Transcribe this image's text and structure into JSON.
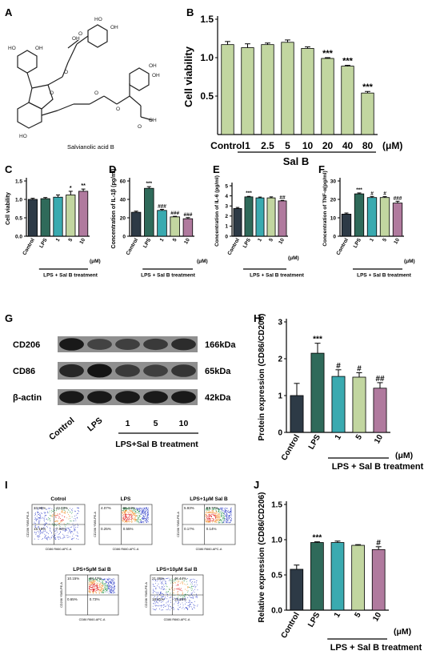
{
  "panel_letters": [
    "A",
    "B",
    "C",
    "D",
    "E",
    "F",
    "G",
    "H",
    "I",
    "J"
  ],
  "panelA": {
    "caption": "Salvianolic acid B"
  },
  "chart_data": [
    {
      "id": "B",
      "type": "bar",
      "ylabel": "Cell viability",
      "categories": [
        "Control",
        "1",
        "2.5",
        "5",
        "10",
        "20",
        "40",
        "80"
      ],
      "values": [
        1.17,
        1.13,
        1.17,
        1.2,
        1.12,
        0.99,
        0.89,
        0.54
      ],
      "errors": [
        0.04,
        0.05,
        0.02,
        0.03,
        0.02,
        0.01,
        0.01,
        0.02
      ],
      "sig": [
        "",
        "",
        "",
        "",
        "",
        "***",
        "***",
        "***"
      ],
      "colors": [
        "#c2d6a0",
        "#c2d6a0",
        "#c2d6a0",
        "#c2d6a0",
        "#c2d6a0",
        "#c2d6a0",
        "#c2d6a0",
        "#c2d6a0"
      ],
      "ylim": [
        0,
        1.5
      ],
      "yticks": [
        "0.5",
        "1.0",
        "1.5"
      ],
      "group_label": "Sal B",
      "unit": "(μM)"
    },
    {
      "id": "C",
      "type": "bar",
      "ylabel": "Cell viability",
      "categories": [
        "Control",
        "LPS",
        "1",
        "5",
        "10"
      ],
      "values": [
        1.0,
        1.02,
        1.06,
        1.12,
        1.22
      ],
      "errors": [
        0.03,
        0.03,
        0.06,
        0.1,
        0.06
      ],
      "sig": [
        "",
        "",
        "",
        "*",
        "**"
      ],
      "colors": [
        "#2d3a46",
        "#2f6a5a",
        "#3aaab0",
        "#c2d6a0",
        "#b07a9e"
      ],
      "ylim": [
        0,
        1.5
      ],
      "yticks": [
        "0.0",
        "0.5",
        "1.0",
        "1.5"
      ],
      "group_label": "LPS + Sal B treatment",
      "unit": "(μM)"
    },
    {
      "id": "D",
      "type": "bar",
      "ylabel": "Concentration of IL-1β (pg/ml)",
      "categories": [
        "Control",
        "LPS",
        "1",
        "5",
        "10"
      ],
      "values": [
        26,
        52,
        28,
        21,
        19
      ],
      "errors": [
        1.2,
        1.8,
        1.2,
        0.6,
        1.2
      ],
      "sig": [
        "",
        "***",
        "###",
        "###",
        "###"
      ],
      "colors": [
        "#2d3a46",
        "#2f6a5a",
        "#3aaab0",
        "#c2d6a0",
        "#b07a9e"
      ],
      "ylim": [
        0,
        60
      ],
      "yticks": [
        "0",
        "20",
        "40",
        "60"
      ],
      "group_label": "LPS + Sal B treatment",
      "unit": "(μM)"
    },
    {
      "id": "E",
      "type": "bar",
      "ylabel": "Concentration of IL-6 (pg/ml)",
      "categories": [
        "Control",
        "LPS",
        "1",
        "5",
        "10"
      ],
      "values": [
        2.75,
        3.9,
        3.8,
        3.8,
        3.5
      ],
      "errors": [
        0.1,
        0.05,
        0.08,
        0.1,
        0.05
      ],
      "sig": [
        "",
        "***",
        "",
        "",
        "##"
      ],
      "colors": [
        "#2d3a46",
        "#2f6a5a",
        "#3aaab0",
        "#c2d6a0",
        "#b07a9e"
      ],
      "ylim": [
        0,
        5
      ],
      "yticks": [
        "0",
        "1",
        "2",
        "3",
        "4",
        "5"
      ],
      "group_label": "LPS + Sal B treatment",
      "unit": "(μM)"
    },
    {
      "id": "F",
      "type": "bar",
      "ylabel": "Concentration of TNF-α(pg/ml)",
      "categories": [
        "Control",
        "LPS",
        "1",
        "5",
        "10"
      ],
      "values": [
        12,
        23,
        21,
        21,
        18
      ],
      "errors": [
        0.6,
        0.5,
        0.6,
        0.5,
        1.0
      ],
      "sig": [
        "",
        "***",
        "#",
        "#",
        "###"
      ],
      "colors": [
        "#2d3a46",
        "#2f6a5a",
        "#3aaab0",
        "#c2d6a0",
        "#b07a9e"
      ],
      "ylim": [
        0,
        30
      ],
      "yticks": [
        "0",
        "10",
        "20",
        "30"
      ],
      "group_label": "LPS + Sal B treatment",
      "unit": "(μM)"
    },
    {
      "id": "H",
      "type": "bar",
      "ylabel": "Protein expression (CD86/CD206)",
      "categories": [
        "Control",
        "LPS",
        "1",
        "5",
        "10"
      ],
      "values": [
        1.0,
        2.15,
        1.52,
        1.5,
        1.2
      ],
      "errors": [
        0.33,
        0.27,
        0.18,
        0.12,
        0.15
      ],
      "sig": [
        "",
        "***",
        "#",
        "#",
        "##"
      ],
      "colors": [
        "#2d3a46",
        "#2f6a5a",
        "#3aaab0",
        "#c2d6a0",
        "#b07a9e"
      ],
      "ylim": [
        0,
        3
      ],
      "yticks": [
        "0",
        "1",
        "2",
        "3"
      ],
      "group_label": "LPS + Sal B treatment",
      "unit": "(μM)"
    },
    {
      "id": "J",
      "type": "bar",
      "ylabel": "Relative expression (CD86/CD206)",
      "categories": [
        "Control",
        "LPS",
        "1",
        "5",
        "10"
      ],
      "values": [
        0.58,
        0.96,
        0.96,
        0.92,
        0.86
      ],
      "errors": [
        0.06,
        0.01,
        0.02,
        0.01,
        0.04
      ],
      "sig": [
        "",
        "***",
        "",
        "",
        "#"
      ],
      "colors": [
        "#2d3a46",
        "#2f6a5a",
        "#3aaab0",
        "#c2d6a0",
        "#b07a9e"
      ],
      "ylim": [
        0,
        1.5
      ],
      "yticks": [
        "0.0",
        "0.5",
        "1.0",
        "1.5"
      ],
      "group_label": "LPS + Sal B treatment",
      "unit": "(μM)"
    }
  ],
  "western": {
    "bands": [
      {
        "label": "CD206",
        "kda": "166kDa",
        "intensity": [
          0.9,
          0.45,
          0.5,
          0.55,
          0.7
        ]
      },
      {
        "label": "CD86",
        "kda": "65kDa",
        "intensity": [
          0.75,
          0.95,
          0.55,
          0.5,
          0.6
        ]
      },
      {
        "label": "β-actin",
        "kda": "42kDa",
        "intensity": [
          0.9,
          0.9,
          0.88,
          0.88,
          0.88
        ]
      }
    ],
    "lanes": [
      "Control",
      "LPS",
      "1",
      "5",
      "10"
    ],
    "group_label": "LPS+Sal B treatment"
  },
  "flow": {
    "plots": [
      {
        "title": "Cotrol",
        "q": [
          "33.95%",
          "43.33%",
          "15.18%",
          "7.54%"
        ]
      },
      {
        "title": "LPS",
        "q": [
          "4.07%",
          "95.13%",
          "0.25%",
          "0.55%"
        ]
      },
      {
        "title": "LPS+1μM Sal B",
        "q": [
          "5.93%",
          "93.77%",
          "0.17%",
          "0.14%"
        ]
      },
      {
        "title": "LPS+5μM Sal B",
        "q": [
          "10.15%",
          "88.47%",
          "0.65%",
          "0.73%"
        ]
      },
      {
        "title": "LPS+10μM Sal B",
        "q": [
          "21.36%",
          "46.44%",
          "18.81%",
          "13.38%"
        ]
      }
    ],
    "xaxis": "CD86 R660-APC-A",
    "yaxis": "CD206 Y585-PE-A"
  }
}
